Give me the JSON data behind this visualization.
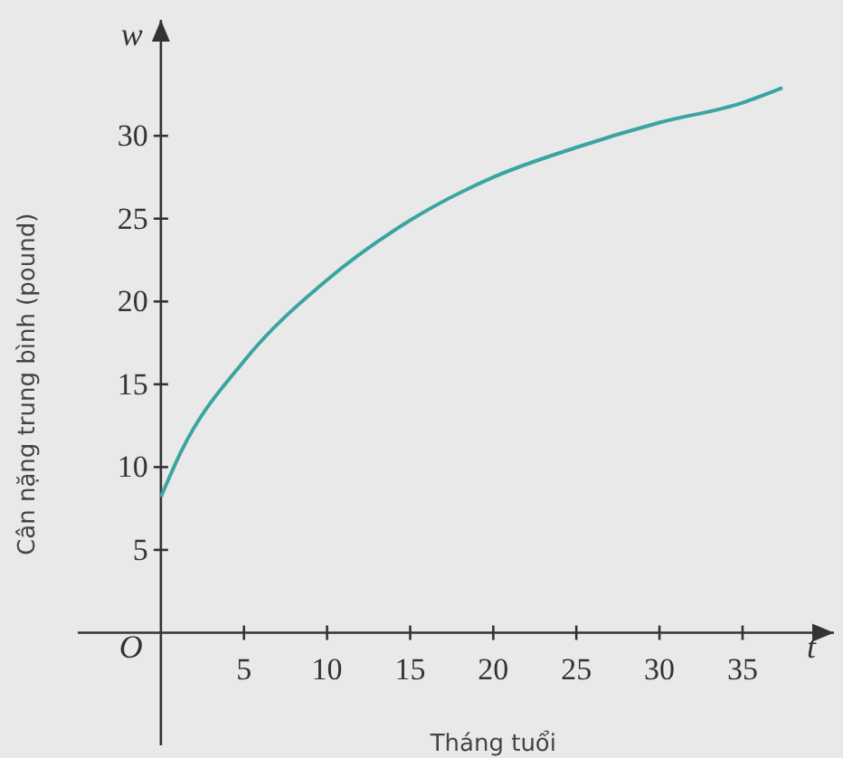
{
  "chart_data": {
    "type": "line",
    "xlabel": "Tháng tuổi",
    "ylabel": "Cân nặng trung bình (pound)",
    "x": [
      0,
      1.2,
      5,
      10,
      15,
      20,
      25,
      30,
      35,
      37.4
    ],
    "series": [
      {
        "color": "#3aa5a0",
        "values": [
          8.2,
          10.9,
          16.4,
          21.3,
          24.9,
          27.5,
          29.3,
          30.8,
          32,
          32.9
        ]
      }
    ],
    "xlim": [
      -5,
      40.5
    ],
    "ylim": [
      -6.8,
      37
    ],
    "xticks": [
      5,
      10,
      15,
      20,
      25,
      30,
      35
    ],
    "yticks": [
      5,
      10,
      15,
      20,
      25,
      30
    ],
    "annotations": [
      "O",
      "w",
      "t"
    ],
    "grid": false,
    "marker": "none",
    "line_style": "solid"
  }
}
